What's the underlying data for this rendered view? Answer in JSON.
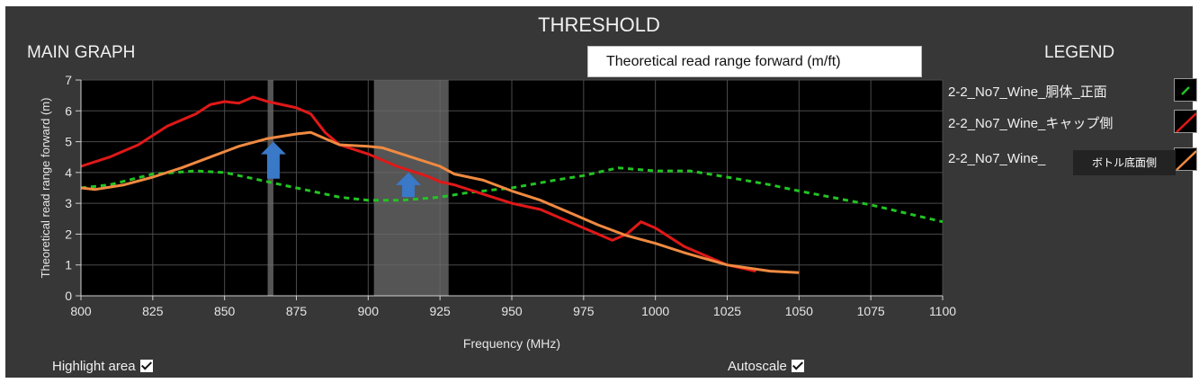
{
  "title": "THRESHOLD",
  "main_graph_label": "MAIN GRAPH",
  "legend_title": "LEGEND",
  "dropdown": {
    "selected": "Theoretical read range forward (m/ft)"
  },
  "legend": [
    {
      "label": "2-2_No7_Wine_胴体_正面",
      "color": "#22c422",
      "style": "dotted"
    },
    {
      "label": "2-2_No7_Wine_キャップ側",
      "color": "#e01818",
      "style": "solid"
    },
    {
      "label": "2-2_No7_Wine_",
      "color": "#f08a40",
      "style": "solid"
    }
  ],
  "tooltip": "ボトル底面側",
  "checkboxes": {
    "highlight_area": "Highlight area",
    "autoscale": "Autoscale"
  },
  "colors": {
    "panel": "#373737",
    "plot_bg": "#000000",
    "grid": "#4a4a4a",
    "highlight": "#6a6a6a",
    "arrow": "#3a78c8"
  },
  "chart_data": {
    "type": "line",
    "xlabel": "Frequency (MHz)",
    "ylabel": "Theoretical read range forward (m)",
    "xlim": [
      800,
      1100
    ],
    "ylim": [
      0,
      7
    ],
    "xticks": [
      800,
      825,
      850,
      875,
      900,
      925,
      950,
      975,
      1000,
      1025,
      1050,
      1075,
      1100
    ],
    "yticks": [
      0,
      1,
      2,
      3,
      4,
      5,
      6,
      7
    ],
    "grid": true,
    "highlight_bands": [
      [
        865,
        867
      ],
      [
        902,
        928
      ]
    ],
    "markers": [
      {
        "type": "arrow-up",
        "x": 867,
        "y_from": 3.8,
        "y_to": 5.0
      },
      {
        "type": "arrow-up",
        "x": 914,
        "y_from": 3.2,
        "y_to": 4.0
      }
    ],
    "series": [
      {
        "name": "2-2_No7_Wine_胴体_正面",
        "color": "#22c422",
        "style": "dotted",
        "x": [
          800,
          810,
          825,
          840,
          850,
          860,
          870,
          880,
          890,
          900,
          912,
          925,
          935,
          950,
          965,
          975,
          987,
          1000,
          1012,
          1025,
          1040,
          1050,
          1075,
          1100
        ],
        "y": [
          3.5,
          3.6,
          3.95,
          4.05,
          4.0,
          3.8,
          3.6,
          3.4,
          3.2,
          3.1,
          3.1,
          3.2,
          3.35,
          3.5,
          3.75,
          3.9,
          4.15,
          4.05,
          4.05,
          3.85,
          3.6,
          3.4,
          2.95,
          2.4
        ]
      },
      {
        "name": "2-2_No7_Wine_キャップ側",
        "color": "#e01818",
        "style": "solid",
        "x": [
          800,
          810,
          820,
          830,
          840,
          845,
          850,
          855,
          860,
          865,
          870,
          875,
          880,
          885,
          890,
          900,
          910,
          920,
          925,
          930,
          940,
          950,
          960,
          970,
          980,
          985,
          990,
          995,
          1000,
          1010,
          1020,
          1025,
          1035
        ],
        "y": [
          4.2,
          4.5,
          4.9,
          5.5,
          5.9,
          6.2,
          6.3,
          6.25,
          6.45,
          6.3,
          6.2,
          6.1,
          5.9,
          5.3,
          4.9,
          4.6,
          4.2,
          3.9,
          3.7,
          3.6,
          3.3,
          3.0,
          2.8,
          2.4,
          2.0,
          1.8,
          2.0,
          2.4,
          2.2,
          1.6,
          1.2,
          1.0,
          0.8
        ]
      },
      {
        "name": "2-2_No7_Wine_",
        "color": "#f08a40",
        "style": "solid",
        "x": [
          800,
          805,
          815,
          825,
          835,
          845,
          855,
          865,
          875,
          880,
          885,
          890,
          900,
          905,
          915,
          925,
          930,
          940,
          950,
          960,
          970,
          980,
          990,
          1000,
          1010,
          1025,
          1040,
          1050
        ],
        "y": [
          3.5,
          3.45,
          3.6,
          3.85,
          4.15,
          4.5,
          4.85,
          5.1,
          5.25,
          5.3,
          5.1,
          4.9,
          4.85,
          4.8,
          4.5,
          4.2,
          3.95,
          3.75,
          3.4,
          3.1,
          2.7,
          2.3,
          1.95,
          1.7,
          1.4,
          1.0,
          0.8,
          0.75
        ]
      }
    ]
  }
}
